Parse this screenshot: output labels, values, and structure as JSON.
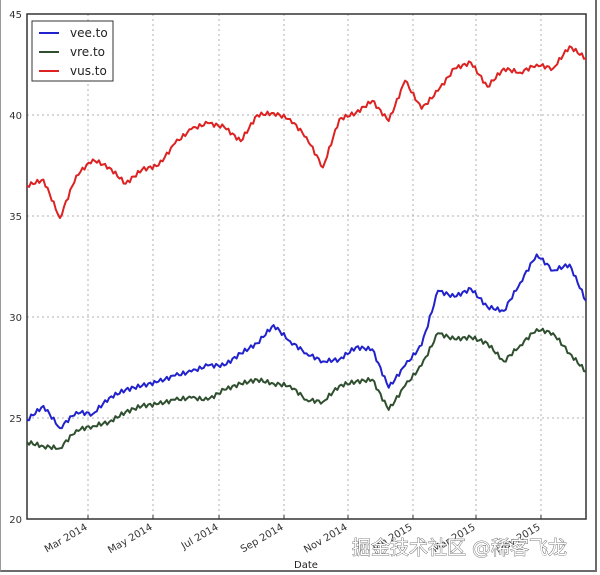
{
  "chart_data": {
    "type": "line",
    "title": "",
    "xlabel": "Date",
    "ylabel": "",
    "ylim": [
      20,
      45
    ],
    "yticks": [
      20,
      25,
      30,
      35,
      40,
      45
    ],
    "xtick_labels": [
      "Mar 2014",
      "May 2014",
      "Jul 2014",
      "Sep 2014",
      "Nov 2014",
      "Jan 2015",
      "Mar 2015",
      "May 2015"
    ],
    "grid": true,
    "legend_position": "upper left",
    "x_range": [
      "Jan 2014",
      "Jun 2015"
    ],
    "x": [
      "2014-01-24",
      "2014-02-08",
      "2014-02-23",
      "2014-03-10",
      "2014-03-25",
      "2014-04-09",
      "2014-04-24",
      "2014-05-09",
      "2014-05-24",
      "2014-06-08",
      "2014-06-23",
      "2014-07-08",
      "2014-07-23",
      "2014-08-07",
      "2014-08-22",
      "2014-09-06",
      "2014-09-21",
      "2014-10-06",
      "2014-10-21",
      "2014-11-05",
      "2014-11-20",
      "2014-12-05",
      "2014-12-20",
      "2015-01-04",
      "2015-01-19",
      "2015-02-03",
      "2015-02-18",
      "2015-03-05",
      "2015-03-20",
      "2015-04-04",
      "2015-04-19",
      "2015-05-04",
      "2015-05-19",
      "2015-06-03",
      "2015-06-15"
    ],
    "series": [
      {
        "name": "vee.to",
        "color": "#2222cc",
        "values": [
          24.9,
          25.6,
          24.5,
          25.3,
          25.2,
          26.0,
          26.4,
          26.6,
          26.8,
          27.1,
          27.3,
          27.6,
          27.6,
          28.2,
          28.7,
          29.6,
          28.8,
          28.2,
          27.8,
          27.9,
          28.5,
          28.4,
          26.5,
          27.6,
          28.6,
          31.3,
          31.0,
          31.4,
          30.5,
          30.3,
          31.7,
          33.1,
          32.3,
          32.6,
          30.8
        ]
      },
      {
        "name": "vre.to",
        "color": "#2f4f2f",
        "values": [
          23.8,
          23.6,
          23.5,
          24.4,
          24.6,
          24.8,
          25.3,
          25.6,
          25.7,
          25.9,
          26.0,
          25.9,
          26.4,
          26.7,
          26.9,
          26.7,
          26.6,
          25.9,
          25.8,
          26.6,
          26.8,
          26.9,
          25.4,
          26.6,
          27.6,
          29.2,
          28.9,
          29.0,
          28.7,
          27.8,
          28.6,
          29.4,
          29.2,
          28.2,
          27.3
        ]
      },
      {
        "name": "vus.to",
        "color": "#dd2222",
        "values": [
          36.5,
          36.8,
          34.9,
          37.0,
          37.8,
          37.4,
          36.6,
          37.3,
          37.5,
          38.6,
          39.3,
          39.6,
          39.4,
          38.7,
          40.0,
          40.1,
          39.8,
          38.9,
          37.4,
          39.8,
          40.1,
          40.7,
          39.7,
          41.7,
          40.3,
          41.2,
          42.3,
          42.6,
          41.4,
          42.3,
          42.1,
          42.5,
          42.3,
          43.4,
          42.8
        ]
      }
    ]
  },
  "legend": {
    "items": [
      {
        "label": "vee.to",
        "color": "#2222cc"
      },
      {
        "label": "vre.to",
        "color": "#2f4f2f"
      },
      {
        "label": "vus.to",
        "color": "#dd2222"
      }
    ]
  },
  "axes": {
    "x_title": "Date",
    "y_tick_labels": [
      "20",
      "25",
      "30",
      "35",
      "40",
      "45"
    ],
    "x_tick_labels": [
      "Mar 2014",
      "May 2014",
      "Jul 2014",
      "Sep 2014",
      "Nov 2014",
      "Jan 2015",
      "Mar 2015",
      "May 2015"
    ]
  },
  "watermark": "掘金技术社区 @稀客飞龙"
}
